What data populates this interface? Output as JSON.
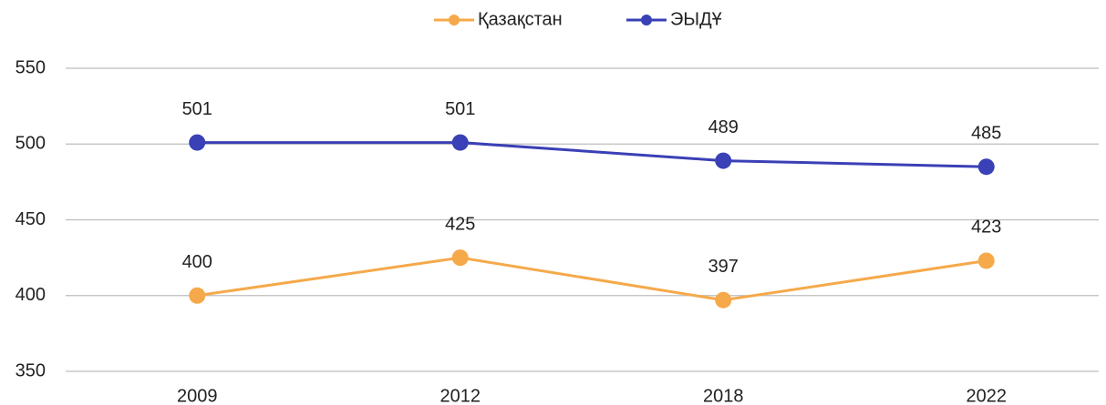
{
  "chart_data": {
    "type": "line",
    "categories": [
      "2009",
      "2012",
      "2018",
      "2022"
    ],
    "series": [
      {
        "name": "Қазақстан",
        "color": "#f5a94a",
        "values": [
          400,
          425,
          397,
          423
        ]
      },
      {
        "name": "ЭЫДҰ",
        "color": "#3a40b5",
        "values": [
          501,
          501,
          489,
          485
        ]
      }
    ],
    "ylim": [
      350,
      550
    ],
    "yticks": [
      350,
      400,
      450,
      500,
      550
    ],
    "grid": true,
    "legend": "top"
  }
}
